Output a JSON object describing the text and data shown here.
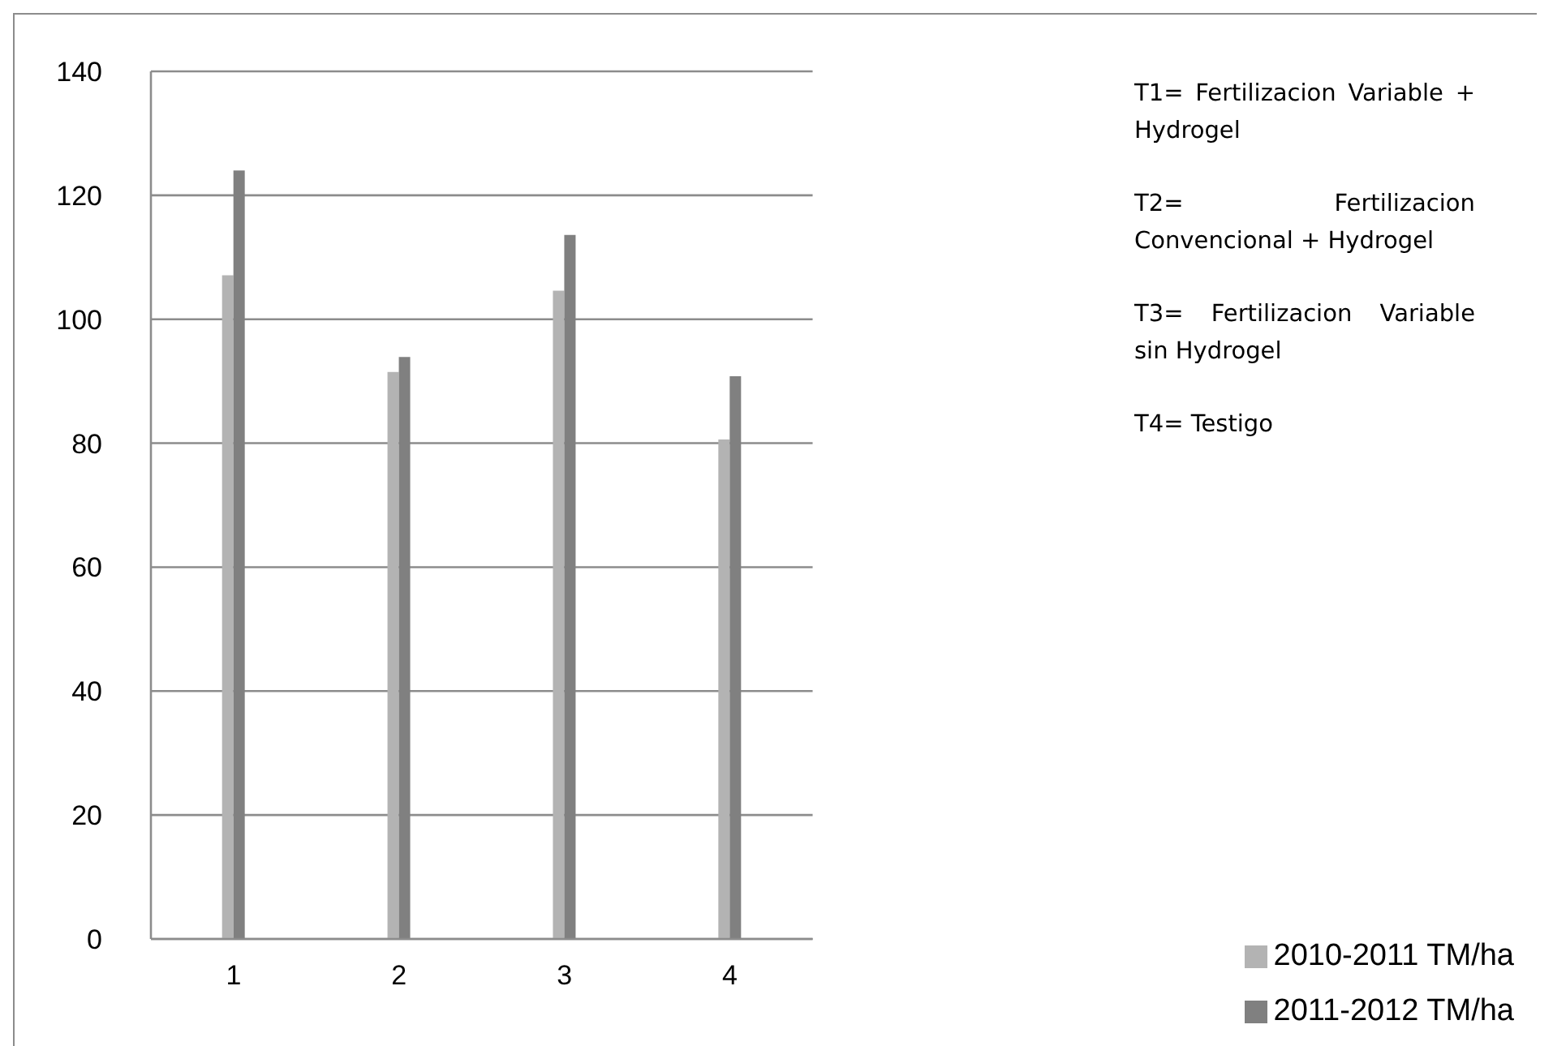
{
  "chart_data": {
    "type": "bar",
    "categories": [
      "1",
      "2",
      "3",
      "4"
    ],
    "series": [
      {
        "name": "2010-2011 TM/ha",
        "color": "#b3b3b3",
        "values": [
          107.1,
          91.5,
          104.6,
          80.6
        ]
      },
      {
        "name": "2011-2012 TM/ha",
        "color": "#808080",
        "values": [
          124,
          93.9,
          113.6,
          90.8
        ]
      }
    ],
    "ylim": [
      0,
      140
    ],
    "yticks": [
      0,
      20,
      40,
      60,
      80,
      100,
      120,
      140
    ],
    "grid": "y",
    "legend": "bottom right",
    "annotations": [
      "T1= Fertilizacion Variable + Hydrogel",
      "T2= Fertilizacion Convencional + Hydrogel",
      "T3= Fertilizacion Variable sin Hydrogel",
      "T4= Testigo"
    ]
  }
}
